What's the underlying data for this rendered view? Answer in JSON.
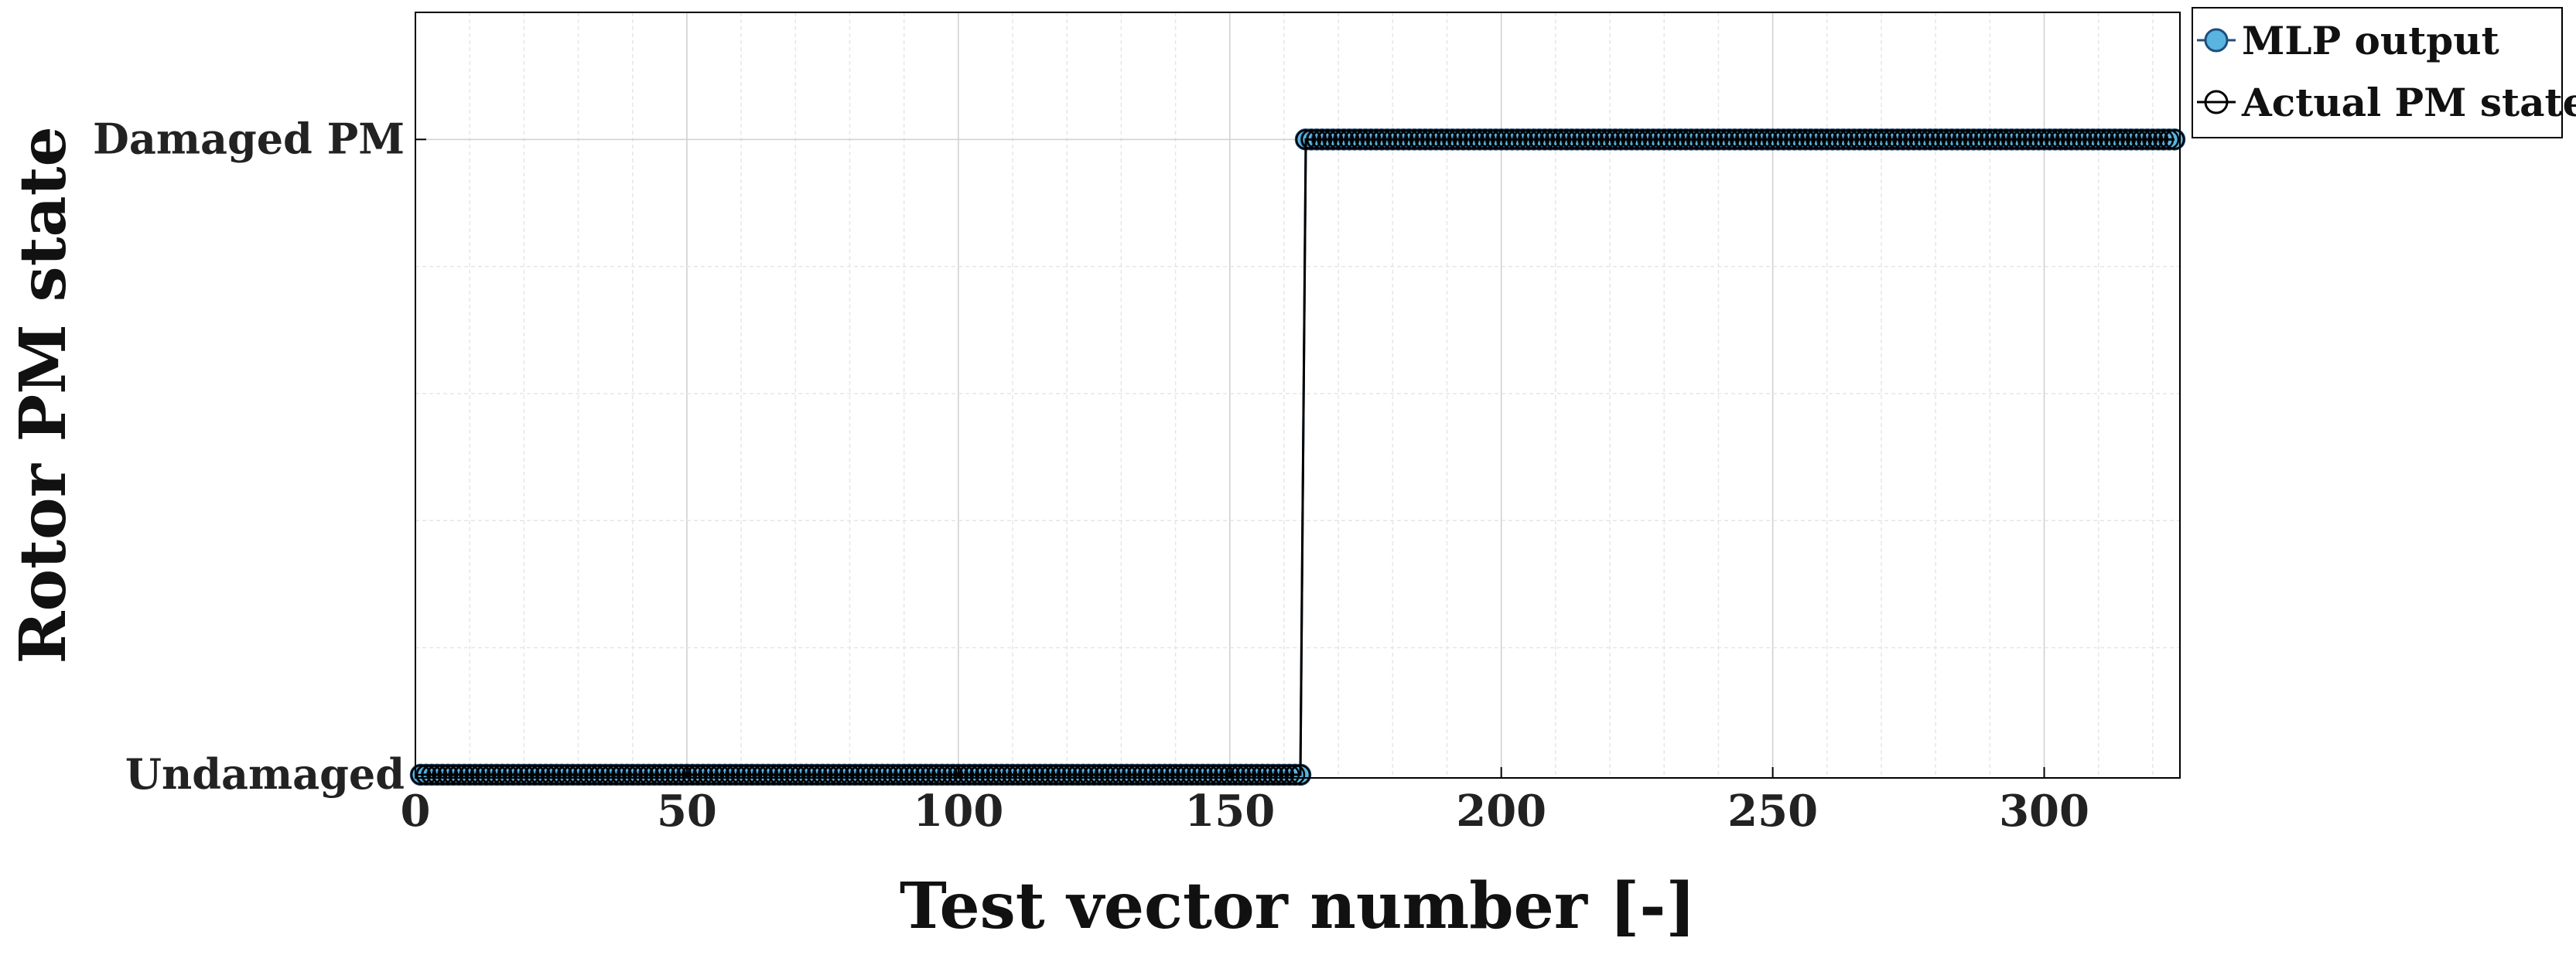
{
  "chart_data": {
    "type": "line",
    "xlabel": "Test vector number [-]",
    "ylabel": "Rotor PM state",
    "xlim": [
      0,
      325
    ],
    "ylim": [
      -0.005,
      1.2
    ],
    "grid": true,
    "minor_grid": true,
    "legend_placement": "outside-top-right",
    "x_ticks": [
      0,
      50,
      100,
      150,
      200,
      250,
      300
    ],
    "x_tick_labels": [
      "0",
      "50",
      "100",
      "150",
      "200",
      "250",
      "300"
    ],
    "y_ticks": [
      0,
      1
    ],
    "y_tick_labels": [
      "Undamaged",
      "Damaged PM"
    ],
    "n_points": 324,
    "transition_after": 163,
    "series": [
      {
        "name": "MLP output",
        "marker": "filled-circle",
        "color": "#1f4e79",
        "marker_fill": "#5ab4e0",
        "rule": "y = 0 for x <= 163, y = 1 for x >= 164"
      },
      {
        "name": "Actual PM state",
        "marker": "open-circle",
        "color": "#000000",
        "rule": "y = 0 for x <= 163, y = 1 for x >= 164"
      }
    ]
  },
  "colors": {
    "axis": "#000000",
    "grid": "#d9d9d9",
    "mlp_fill": "#5ab4e0",
    "mlp_edge": "#1f4e79",
    "actual": "#000000"
  }
}
